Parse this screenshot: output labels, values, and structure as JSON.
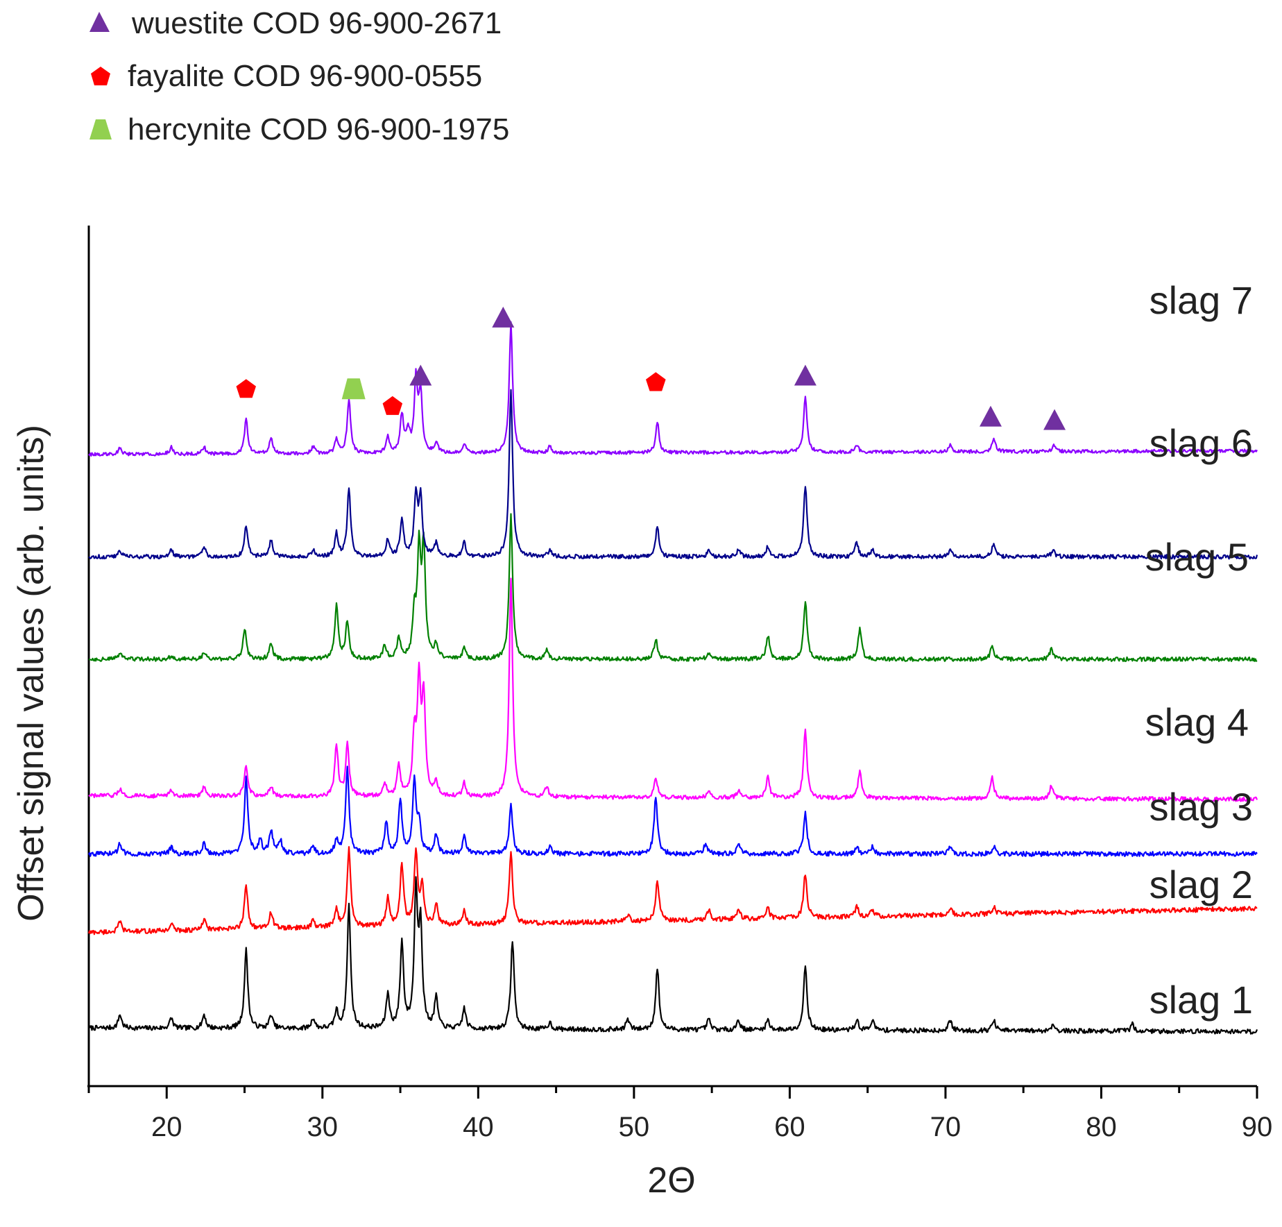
{
  "chart_data": {
    "type": "line",
    "title": "",
    "xlabel": "2Θ",
    "ylabel": "Offset signal values (arb. units)",
    "xlim": [
      15,
      90
    ],
    "x_ticks": [
      20,
      30,
      40,
      50,
      60,
      70,
      80,
      90
    ],
    "y_ticks_shown": false,
    "grid": false,
    "legend_position": "top-left",
    "legend": [
      {
        "label": "wuestite COD 96-900-2671",
        "marker": "triangle",
        "color": "#7030A0"
      },
      {
        "label": "fayalite COD 96-900-0555",
        "marker": "pentagon",
        "color": "#FF0000"
      },
      {
        "label": "hercynite COD 96-900-1975",
        "marker": "trapezoid",
        "color": "#92D050"
      }
    ],
    "phase_markers": [
      {
        "phase": "fayalite",
        "x": 25.1,
        "y": 20.4
      },
      {
        "phase": "hercynite",
        "x": 32.0,
        "y": 20.4
      },
      {
        "phase": "fayalite",
        "x": 34.5,
        "y": 19.9
      },
      {
        "phase": "wuestite",
        "x": 36.3,
        "y": 20.8
      },
      {
        "phase": "wuestite",
        "x": 41.6,
        "y": 22.5
      },
      {
        "phase": "fayalite",
        "x": 51.4,
        "y": 20.6
      },
      {
        "phase": "wuestite",
        "x": 61.0,
        "y": 20.8
      },
      {
        "phase": "wuestite",
        "x": 72.9,
        "y": 19.6
      },
      {
        "phase": "wuestite",
        "x": 77.0,
        "y": 19.5
      }
    ],
    "series": [
      {
        "name": "slag 1",
        "color": "#000000",
        "baseline": [
          1.7,
          1.6
        ],
        "noise": 0.07,
        "peaks": [
          [
            17.0,
            0.4
          ],
          [
            20.3,
            0.3
          ],
          [
            22.4,
            0.4
          ],
          [
            25.1,
            2.3
          ],
          [
            26.7,
            0.4
          ],
          [
            29.4,
            0.3
          ],
          [
            30.9,
            0.5
          ],
          [
            31.7,
            3.6
          ],
          [
            34.2,
            1.0
          ],
          [
            35.1,
            2.5
          ],
          [
            36.0,
            3.9
          ],
          [
            36.3,
            2.9
          ],
          [
            37.3,
            0.9
          ],
          [
            39.1,
            0.6
          ],
          [
            42.2,
            2.6
          ],
          [
            44.6,
            0.2
          ],
          [
            49.6,
            0.3
          ],
          [
            51.5,
            1.8
          ],
          [
            54.8,
            0.3
          ],
          [
            56.7,
            0.3
          ],
          [
            58.6,
            0.3
          ],
          [
            61.0,
            1.9
          ],
          [
            64.3,
            0.3
          ],
          [
            65.3,
            0.3
          ],
          [
            70.3,
            0.3
          ],
          [
            73.1,
            0.3
          ],
          [
            76.9,
            0.2
          ],
          [
            82.0,
            0.2
          ]
        ]
      },
      {
        "name": "slag 2",
        "color": "#FF0000",
        "baseline": [
          4.5,
          5.2
        ],
        "noise": 0.07,
        "peaks": [
          [
            17.0,
            0.3
          ],
          [
            20.3,
            0.2
          ],
          [
            22.4,
            0.3
          ],
          [
            25.1,
            1.3
          ],
          [
            26.7,
            0.5
          ],
          [
            29.4,
            0.2
          ],
          [
            30.9,
            0.5
          ],
          [
            31.7,
            2.3
          ],
          [
            34.2,
            0.8
          ],
          [
            35.1,
            1.8
          ],
          [
            36.0,
            2.1
          ],
          [
            36.4,
            1.2
          ],
          [
            37.3,
            0.6
          ],
          [
            39.1,
            0.4
          ],
          [
            42.1,
            2.1
          ],
          [
            49.6,
            0.2
          ],
          [
            51.5,
            1.2
          ],
          [
            54.8,
            0.3
          ],
          [
            56.7,
            0.3
          ],
          [
            58.6,
            0.3
          ],
          [
            61.0,
            1.3
          ],
          [
            64.3,
            0.3
          ],
          [
            65.3,
            0.2
          ],
          [
            70.3,
            0.2
          ],
          [
            73.1,
            0.2
          ]
        ]
      },
      {
        "name": "slag 3",
        "color": "#0000FF",
        "baseline": [
          6.8,
          6.8
        ],
        "noise": 0.07,
        "peaks": [
          [
            17.0,
            0.3
          ],
          [
            20.3,
            0.2
          ],
          [
            22.4,
            0.3
          ],
          [
            25.1,
            2.2
          ],
          [
            26.0,
            0.4
          ],
          [
            26.7,
            0.7
          ],
          [
            27.3,
            0.4
          ],
          [
            29.4,
            0.2
          ],
          [
            30.9,
            0.4
          ],
          [
            31.6,
            2.5
          ],
          [
            34.1,
            0.9
          ],
          [
            35.0,
            1.6
          ],
          [
            35.9,
            2.1
          ],
          [
            36.2,
            0.9
          ],
          [
            37.3,
            0.6
          ],
          [
            39.1,
            0.5
          ],
          [
            42.1,
            1.4
          ],
          [
            44.6,
            0.2
          ],
          [
            51.4,
            1.7
          ],
          [
            54.6,
            0.3
          ],
          [
            56.7,
            0.3
          ],
          [
            61.0,
            1.2
          ],
          [
            64.3,
            0.2
          ],
          [
            65.3,
            0.2
          ],
          [
            70.3,
            0.2
          ],
          [
            73.1,
            0.2
          ]
        ]
      },
      {
        "name": "slag 4",
        "color": "#FF00FF",
        "baseline": [
          8.5,
          8.4
        ],
        "noise": 0.06,
        "peaks": [
          [
            17.0,
            0.2
          ],
          [
            20.3,
            0.2
          ],
          [
            22.4,
            0.3
          ],
          [
            25.1,
            0.9
          ],
          [
            26.7,
            0.3
          ],
          [
            30.9,
            1.5
          ],
          [
            31.6,
            1.5
          ],
          [
            34.0,
            0.4
          ],
          [
            34.9,
            0.9
          ],
          [
            35.9,
            1.7
          ],
          [
            36.2,
            3.2
          ],
          [
            36.5,
            2.8
          ],
          [
            37.3,
            0.4
          ],
          [
            39.1,
            0.4
          ],
          [
            42.1,
            6.4
          ],
          [
            44.4,
            0.3
          ],
          [
            51.4,
            0.6
          ],
          [
            54.8,
            0.2
          ],
          [
            56.7,
            0.2
          ],
          [
            58.6,
            0.6
          ],
          [
            61.0,
            2.0
          ],
          [
            64.5,
            0.8
          ],
          [
            73.0,
            0.6
          ],
          [
            76.8,
            0.4
          ]
        ]
      },
      {
        "name": "slag 5",
        "color": "#008000",
        "baseline": [
          12.5,
          12.5
        ],
        "noise": 0.06,
        "peaks": [
          [
            17.0,
            0.2
          ],
          [
            20.3,
            0.1
          ],
          [
            22.4,
            0.2
          ],
          [
            25.0,
            0.9
          ],
          [
            26.7,
            0.5
          ],
          [
            30.9,
            1.6
          ],
          [
            31.6,
            1.1
          ],
          [
            34.0,
            0.4
          ],
          [
            34.9,
            0.6
          ],
          [
            35.9,
            1.2
          ],
          [
            36.2,
            3.0
          ],
          [
            36.5,
            3.2
          ],
          [
            37.3,
            0.4
          ],
          [
            39.1,
            0.3
          ],
          [
            42.1,
            4.2
          ],
          [
            44.4,
            0.3
          ],
          [
            51.4,
            0.6
          ],
          [
            54.8,
            0.2
          ],
          [
            58.6,
            0.7
          ],
          [
            61.0,
            1.7
          ],
          [
            64.5,
            0.9
          ],
          [
            73.0,
            0.4
          ],
          [
            76.8,
            0.3
          ]
        ]
      },
      {
        "name": "slag 6",
        "color": "#00008B",
        "baseline": [
          15.5,
          15.5
        ],
        "noise": 0.06,
        "peaks": [
          [
            17.0,
            0.2
          ],
          [
            20.3,
            0.2
          ],
          [
            22.4,
            0.3
          ],
          [
            25.1,
            0.9
          ],
          [
            26.7,
            0.5
          ],
          [
            29.4,
            0.2
          ],
          [
            30.9,
            0.7
          ],
          [
            31.7,
            2.0
          ],
          [
            34.2,
            0.5
          ],
          [
            35.1,
            1.1
          ],
          [
            36.0,
            1.8
          ],
          [
            36.3,
            1.7
          ],
          [
            37.3,
            0.4
          ],
          [
            39.1,
            0.4
          ],
          [
            42.1,
            4.9
          ],
          [
            44.6,
            0.2
          ],
          [
            51.5,
            0.9
          ],
          [
            54.8,
            0.2
          ],
          [
            56.7,
            0.2
          ],
          [
            58.6,
            0.3
          ],
          [
            61.0,
            2.1
          ],
          [
            64.3,
            0.4
          ],
          [
            65.3,
            0.2
          ],
          [
            70.3,
            0.2
          ],
          [
            73.1,
            0.4
          ],
          [
            76.9,
            0.2
          ]
        ]
      },
      {
        "name": "slag 7",
        "color": "#8B00FF",
        "baseline": [
          18.5,
          18.6
        ],
        "noise": 0.05,
        "peaks": [
          [
            17.0,
            0.2
          ],
          [
            20.3,
            0.2
          ],
          [
            22.4,
            0.2
          ],
          [
            25.1,
            1.0
          ],
          [
            26.7,
            0.5
          ],
          [
            29.4,
            0.2
          ],
          [
            30.9,
            0.4
          ],
          [
            31.7,
            1.6
          ],
          [
            34.2,
            0.5
          ],
          [
            35.1,
            1.1
          ],
          [
            35.5,
            0.6
          ],
          [
            36.0,
            2.1
          ],
          [
            36.3,
            1.7
          ],
          [
            37.3,
            0.3
          ],
          [
            39.1,
            0.3
          ],
          [
            42.1,
            3.8
          ],
          [
            44.6,
            0.2
          ],
          [
            51.5,
            0.9
          ],
          [
            61.0,
            1.6
          ],
          [
            64.3,
            0.2
          ],
          [
            70.3,
            0.2
          ],
          [
            73.1,
            0.4
          ],
          [
            77.0,
            0.2
          ]
        ]
      }
    ],
    "series_labels": [
      "slag 1",
      "slag 2",
      "slag 3",
      "slag 4",
      "slag 5",
      "slag 6",
      "slag 7"
    ]
  }
}
